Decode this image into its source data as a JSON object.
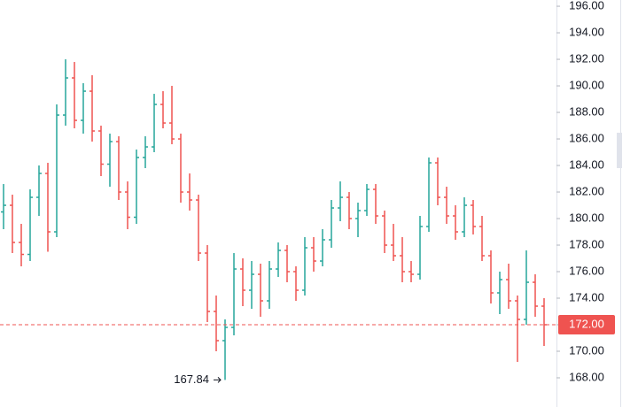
{
  "chart_data": {
    "type": "ohlc",
    "open": [
      180.5,
      181.0,
      178.2,
      177.3,
      181.6,
      183.4,
      179.0,
      187.8,
      190.6,
      187.4,
      189.6,
      186.6,
      184.1,
      185.8,
      182.0,
      180.1,
      184.6,
      185.4,
      188.6,
      187.2,
      186.0,
      182.0,
      181.4,
      177.4,
      173.0,
      170.8,
      171.8,
      176.2,
      174.6,
      175.8,
      173.8,
      176.2,
      177.6,
      176.0,
      174.6,
      177.8,
      176.8,
      178.4,
      180.8,
      181.6,
      180.0,
      180.6,
      182.2,
      180.2,
      178.0,
      177.2,
      176.0,
      175.8,
      179.4,
      184.2,
      181.6,
      180.2,
      179.0,
      181.0,
      179.4,
      177.2,
      174.4,
      175.4,
      173.8,
      172.4,
      175.2,
      173.4
    ],
    "high": [
      182.6,
      181.8,
      179.6,
      182.2,
      184.0,
      184.2,
      188.6,
      192.0,
      191.8,
      190.2,
      190.8,
      187.0,
      186.4,
      186.2,
      182.8,
      185.2,
      186.2,
      189.4,
      189.6,
      190.0,
      186.4,
      183.4,
      181.8,
      178.0,
      174.2,
      172.4,
      177.4,
      177.0,
      176.8,
      176.6,
      176.8,
      178.2,
      178.0,
      176.4,
      178.6,
      178.6,
      179.2,
      181.4,
      182.8,
      182.0,
      181.2,
      182.6,
      182.6,
      180.6,
      179.6,
      178.6,
      176.8,
      180.2,
      184.6,
      184.6,
      182.4,
      181.0,
      181.6,
      181.4,
      180.2,
      177.6,
      176.0,
      176.6,
      174.2,
      177.6,
      175.8,
      174.0
    ],
    "low": [
      179.2,
      177.4,
      176.4,
      176.8,
      180.2,
      177.5,
      178.6,
      187.0,
      186.8,
      186.4,
      185.8,
      183.2,
      182.4,
      181.4,
      179.2,
      179.6,
      183.8,
      185.0,
      186.8,
      185.6,
      181.2,
      180.6,
      176.8,
      172.2,
      170.0,
      167.84,
      171.2,
      173.4,
      173.2,
      172.6,
      173.2,
      175.6,
      175.2,
      173.8,
      174.2,
      176.0,
      176.4,
      177.8,
      179.8,
      179.2,
      178.6,
      180.2,
      179.6,
      177.4,
      176.8,
      175.2,
      175.2,
      175.4,
      179.0,
      181.0,
      179.6,
      178.4,
      178.6,
      178.8,
      176.8,
      173.6,
      172.8,
      173.2,
      169.2,
      172.0,
      172.6,
      170.4
    ],
    "close": [
      181.0,
      178.2,
      177.3,
      181.6,
      183.4,
      179.0,
      187.8,
      190.6,
      187.4,
      189.6,
      186.6,
      184.1,
      185.8,
      182.0,
      180.1,
      184.6,
      185.4,
      188.6,
      187.2,
      186.0,
      182.0,
      181.4,
      177.4,
      173.0,
      170.8,
      171.8,
      176.2,
      174.6,
      175.8,
      173.8,
      176.2,
      177.6,
      176.0,
      174.6,
      177.8,
      176.8,
      178.4,
      180.8,
      181.6,
      180.0,
      180.6,
      182.2,
      180.2,
      178.0,
      177.2,
      176.0,
      175.8,
      179.4,
      184.2,
      181.6,
      180.2,
      179.0,
      181.0,
      179.4,
      177.2,
      174.4,
      175.4,
      173.8,
      172.4,
      175.2,
      173.4,
      172.0
    ],
    "up_color": "#26a69a",
    "down_color": "#ef5350",
    "ylim": [
      165.8,
      196.47
    ],
    "yticks": [
      {
        "value": 168,
        "label": "168.00"
      },
      {
        "value": 170,
        "label": "170.00"
      },
      {
        "value": 172,
        "label": "172.00"
      },
      {
        "value": 174,
        "label": "174.00"
      },
      {
        "value": 176,
        "label": "176.00"
      },
      {
        "value": 178,
        "label": "178.00"
      },
      {
        "value": 180,
        "label": "180.00"
      },
      {
        "value": 182,
        "label": "182.00"
      },
      {
        "value": 184,
        "label": "184.00"
      },
      {
        "value": 186,
        "label": "186.00"
      },
      {
        "value": 188,
        "label": "188.00"
      },
      {
        "value": 190,
        "label": "190.00"
      },
      {
        "value": 192,
        "label": "192.00"
      },
      {
        "value": 194,
        "label": "194.00"
      },
      {
        "value": 196,
        "label": "196.00"
      }
    ],
    "last_price": {
      "value": 172,
      "label": "172.00"
    },
    "low_marker_index": 25
  }
}
